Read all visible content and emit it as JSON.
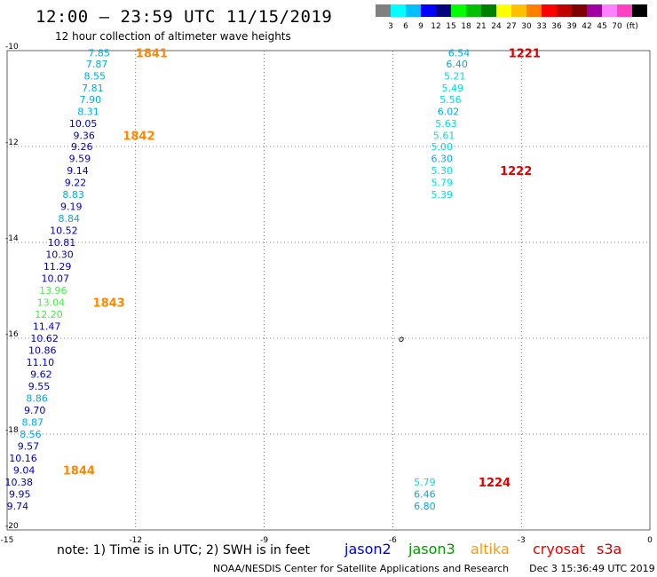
{
  "header": {
    "title": "12:00 – 23:59 UTC 11/15/2019",
    "subtitle": "12 hour collection of altimeter wave heights"
  },
  "legend_colorbar": {
    "colors": [
      "#808080",
      "#00ffff",
      "#00bfff",
      "#0000ff",
      "#000080",
      "#00ff00",
      "#00c000",
      "#008000",
      "#ffff00",
      "#ffc000",
      "#ff8000",
      "#ff0000",
      "#c00000",
      "#800000",
      "#a000a0",
      "#ff80ff",
      "#ff40c0",
      "#000000"
    ],
    "labels": [
      "3",
      "6",
      "9",
      "12",
      "15",
      "18",
      "21",
      "24",
      "27",
      "30",
      "33",
      "36",
      "39",
      "42",
      "45",
      "70",
      "(ft)"
    ]
  },
  "chart_data": {
    "type": "scatter",
    "title": "12:00 – 23:59 UTC 11/15/2019",
    "subtitle": "12 hour collection of altimeter wave heights",
    "xlim": [
      -15,
      0
    ],
    "ylim": [
      -20,
      -10
    ],
    "x_ticks": [
      "-15",
      "-12",
      "-9",
      "-6",
      "-3",
      "0"
    ],
    "y_ticks": [
      "-10",
      "-12",
      "-14",
      "-16",
      "-18",
      "-20"
    ],
    "grid": true,
    "series": [
      {
        "name": "jason2",
        "points": [
          {
            "x": -12.6,
            "y": -10.05,
            "v": "7.85",
            "color": "#00aadd"
          },
          {
            "x": -12.65,
            "y": -10.28,
            "v": "7.87",
            "color": "#00aadd"
          },
          {
            "x": -12.7,
            "y": -10.53,
            "v": "8.55",
            "color": "#00aadd"
          },
          {
            "x": -12.75,
            "y": -10.78,
            "v": "7.81",
            "color": "#00aadd"
          },
          {
            "x": -12.8,
            "y": -11.02,
            "v": "7.90",
            "color": "#00aadd"
          },
          {
            "x": -12.85,
            "y": -11.27,
            "v": "8.31",
            "color": "#00aadd"
          },
          {
            "x": -12.9,
            "y": -11.52,
            "v": "10.05",
            "color": "#0000c0"
          },
          {
            "x": -12.95,
            "y": -11.77,
            "v": "9.36",
            "color": "#0000c0"
          },
          {
            "x": -13.0,
            "y": -12.0,
            "v": "9.26",
            "color": "#0000c0"
          },
          {
            "x": -13.05,
            "y": -12.25,
            "v": "9.59",
            "color": "#0000c0"
          },
          {
            "x": -13.1,
            "y": -12.5,
            "v": "9.14",
            "color": "#0000c0"
          },
          {
            "x": -13.15,
            "y": -12.75,
            "v": "9.22",
            "color": "#0000c0"
          },
          {
            "x": -13.2,
            "y": -13.0,
            "v": "8.83",
            "color": "#00aadd"
          },
          {
            "x": -13.25,
            "y": -13.25,
            "v": "9.19",
            "color": "#0000c0"
          },
          {
            "x": -13.3,
            "y": -13.5,
            "v": "8.84",
            "color": "#00aadd"
          },
          {
            "x": -13.35,
            "y": -13.75,
            "v": "10.52",
            "color": "#0000c0"
          },
          {
            "x": -13.4,
            "y": -14.0,
            "v": "10.81",
            "color": "#0000c0"
          },
          {
            "x": -13.45,
            "y": -14.25,
            "v": "10.30",
            "color": "#0000c0"
          },
          {
            "x": -13.5,
            "y": -14.5,
            "v": "11.29",
            "color": "#0000c0"
          },
          {
            "x": -13.55,
            "y": -14.75,
            "v": "10.07",
            "color": "#0000c0"
          },
          {
            "x": -13.6,
            "y": -15.0,
            "v": "13.96",
            "color": "#44ee44"
          },
          {
            "x": -13.65,
            "y": -15.25,
            "v": "13.04",
            "color": "#44ee44"
          },
          {
            "x": -13.7,
            "y": -15.5,
            "v": "12.20",
            "color": "#44ee44"
          },
          {
            "x": -13.75,
            "y": -15.75,
            "v": "11.47",
            "color": "#0000c0"
          },
          {
            "x": -13.8,
            "y": -16.0,
            "v": "10.62",
            "color": "#0000c0"
          },
          {
            "x": -13.85,
            "y": -16.25,
            "v": "10.86",
            "color": "#0000c0"
          },
          {
            "x": -13.9,
            "y": -16.5,
            "v": "11.10",
            "color": "#0000c0"
          },
          {
            "x": -13.95,
            "y": -16.75,
            "v": "9.62",
            "color": "#0000c0"
          },
          {
            "x": -14.0,
            "y": -17.0,
            "v": "9.55",
            "color": "#0000c0"
          },
          {
            "x": -14.05,
            "y": -17.25,
            "v": "8.86",
            "color": "#00aadd"
          },
          {
            "x": -14.1,
            "y": -17.5,
            "v": "9.70",
            "color": "#0000c0"
          },
          {
            "x": -14.15,
            "y": -17.75,
            "v": "8.87",
            "color": "#00aadd"
          },
          {
            "x": -14.2,
            "y": -18.0,
            "v": "8.56",
            "color": "#00aadd"
          },
          {
            "x": -14.25,
            "y": -18.25,
            "v": "9.57",
            "color": "#0000c0"
          },
          {
            "x": -14.3,
            "y": -18.5,
            "v": "10.16",
            "color": "#0000c0"
          },
          {
            "x": -14.35,
            "y": -18.75,
            "v": "9.04",
            "color": "#0000c0"
          },
          {
            "x": -14.4,
            "y": -19.0,
            "v": "10.38",
            "color": "#0000c0"
          },
          {
            "x": -14.45,
            "y": -19.25,
            "v": "9.95",
            "color": "#0000c0"
          },
          {
            "x": -14.5,
            "y": -19.5,
            "v": "9.74",
            "color": "#0000c0"
          }
        ]
      },
      {
        "name": "cryosat",
        "points": [
          {
            "x": -4.2,
            "y": -10.05,
            "v": "6.54",
            "color": "#00aadd"
          },
          {
            "x": -4.25,
            "y": -10.28,
            "v": "6.40",
            "color": "#00aadd"
          },
          {
            "x": -4.3,
            "y": -10.53,
            "v": "5.21",
            "color": "#00dddd"
          },
          {
            "x": -4.35,
            "y": -10.78,
            "v": "5.49",
            "color": "#00dddd"
          },
          {
            "x": -4.4,
            "y": -11.02,
            "v": "5.56",
            "color": "#00dddd"
          },
          {
            "x": -4.45,
            "y": -11.27,
            "v": "6.02",
            "color": "#00aadd"
          },
          {
            "x": -4.5,
            "y": -11.52,
            "v": "5.63",
            "color": "#00dddd"
          },
          {
            "x": -4.55,
            "y": -11.77,
            "v": "5.61",
            "color": "#00dddd"
          },
          {
            "x": -4.6,
            "y": -12.0,
            "v": "5.00",
            "color": "#00dddd"
          },
          {
            "x": -4.6,
            "y": -12.25,
            "v": "6.30",
            "color": "#00aadd"
          },
          {
            "x": -4.6,
            "y": -12.5,
            "v": "5.30",
            "color": "#00dddd"
          },
          {
            "x": -4.6,
            "y": -12.75,
            "v": "5.79",
            "color": "#00dddd"
          },
          {
            "x": -4.6,
            "y": -13.0,
            "v": "5.39",
            "color": "#00dddd"
          },
          {
            "x": -5.0,
            "y": -19.0,
            "v": "5.79",
            "color": "#00dddd"
          },
          {
            "x": -5.0,
            "y": -19.25,
            "v": "6.46",
            "color": "#00aadd"
          },
          {
            "x": -5.0,
            "y": -19.5,
            "v": "6.80",
            "color": "#00aadd"
          }
        ]
      }
    ],
    "time_labels": [
      {
        "x": -12.0,
        "y": -10.05,
        "t": "1841",
        "color": "#ff8800"
      },
      {
        "x": -12.3,
        "y": -11.77,
        "t": "1842",
        "color": "#ff8800"
      },
      {
        "x": -13.0,
        "y": -15.25,
        "t": "1843",
        "color": "#ff8800"
      },
      {
        "x": -13.7,
        "y": -18.75,
        "t": "1844",
        "color": "#ff8800"
      },
      {
        "x": -3.3,
        "y": -10.05,
        "t": "1221",
        "color": "#dd0000"
      },
      {
        "x": -3.5,
        "y": -12.5,
        "t": "1222",
        "color": "#dd0000"
      },
      {
        "x": -4.0,
        "y": -19.0,
        "t": "1224",
        "color": "#dd0000"
      }
    ],
    "annotations": [
      {
        "x": -5.8,
        "y": -16.0,
        "t": "o"
      }
    ]
  },
  "notes": {
    "text": "note:  1) Time is in UTC;  2) SWH is in feet",
    "satellites": [
      {
        "name": "jason2",
        "color": "#0000dd"
      },
      {
        "name": "jason3",
        "color": "#009900"
      },
      {
        "name": "altika",
        "color": "#ff9900"
      },
      {
        "name": "cryosat",
        "color": "#ee0000"
      },
      {
        "name": "s3a",
        "color": "#cc0000"
      }
    ]
  },
  "footer": {
    "credit": "NOAA/NESDIS Center for Satellite Applications and Research",
    "timestamp": "Dec  3 15:36:49 UTC 2019"
  }
}
